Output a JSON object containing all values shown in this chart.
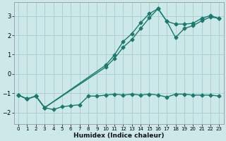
{
  "xlabel": "Humidex (Indice chaleur)",
  "bg_color": "#cce8e8",
  "grid_color": "#aacccc",
  "line_color": "#1a7a6e",
  "marker": "D",
  "markersize": 2.5,
  "linewidth": 1.0,
  "xlim": [
    -0.5,
    23.5
  ],
  "ylim": [
    -2.6,
    3.7
  ],
  "xticks": [
    0,
    1,
    2,
    3,
    4,
    5,
    6,
    7,
    8,
    9,
    10,
    11,
    12,
    13,
    14,
    15,
    16,
    17,
    18,
    19,
    20,
    21,
    22,
    23
  ],
  "yticks": [
    -2,
    -1,
    0,
    1,
    2,
    3
  ],
  "line1_x": [
    0,
    1,
    2,
    3,
    4,
    5,
    6,
    7,
    8,
    9,
    10,
    11,
    12,
    13,
    14,
    15,
    16,
    17,
    18,
    19,
    20,
    21,
    22,
    23
  ],
  "line1_y": [
    -1.1,
    -1.3,
    -1.15,
    -1.75,
    -1.85,
    -1.7,
    -1.65,
    -1.6,
    -1.15,
    -1.15,
    -1.1,
    -1.05,
    -1.1,
    -1.05,
    -1.1,
    -1.05,
    -1.1,
    -1.2,
    -1.05,
    -1.05,
    -1.1,
    -1.1,
    -1.1,
    -1.15
  ],
  "line2_x": [
    0,
    1,
    2,
    3,
    10,
    11,
    12,
    13,
    14,
    15,
    16,
    17,
    18,
    19,
    20,
    21,
    22,
    23
  ],
  "line2_y": [
    -1.1,
    -1.3,
    -1.15,
    -1.75,
    0.45,
    0.98,
    1.68,
    2.08,
    2.65,
    3.12,
    3.38,
    2.72,
    2.58,
    2.58,
    2.62,
    2.88,
    3.02,
    2.87
  ],
  "line3_x": [
    0,
    1,
    2,
    3,
    10,
    11,
    12,
    13,
    14,
    15,
    16,
    17,
    18,
    19,
    20,
    21,
    22,
    23
  ],
  "line3_y": [
    -1.1,
    -1.3,
    -1.15,
    -1.75,
    0.35,
    0.8,
    1.38,
    1.78,
    2.35,
    2.9,
    3.38,
    2.72,
    1.88,
    2.35,
    2.5,
    2.75,
    2.95,
    2.87
  ]
}
